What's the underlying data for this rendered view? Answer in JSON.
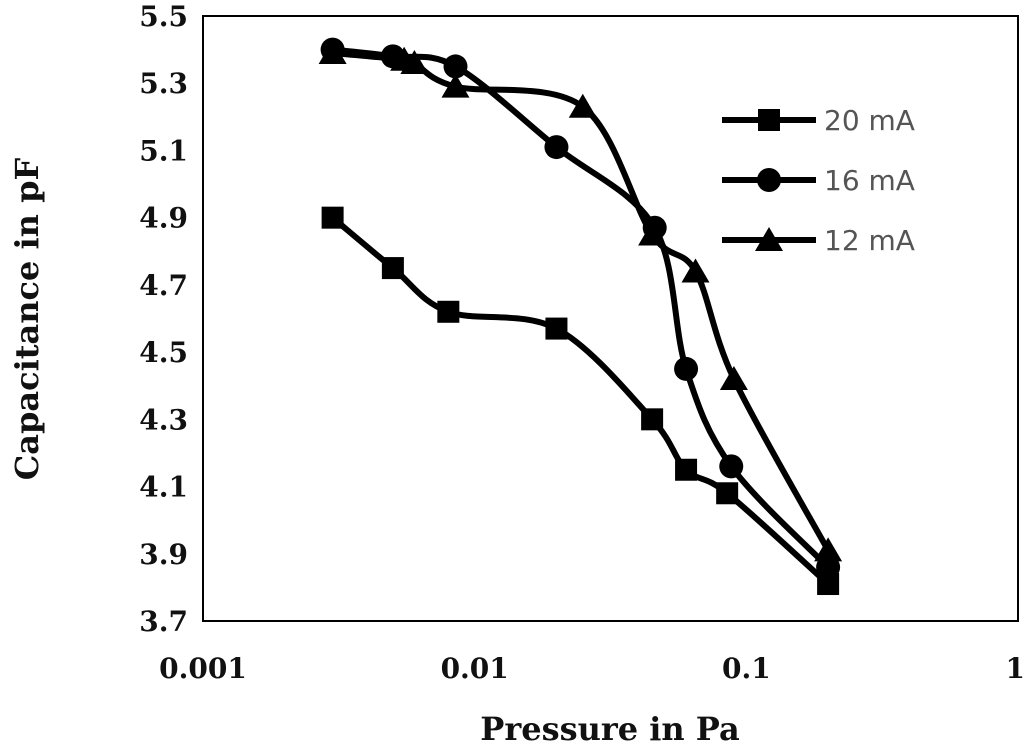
{
  "chart_data": {
    "type": "line",
    "xscale": "log",
    "xlabel": "Pressure in Pa",
    "ylabel": "Capacitance in pF",
    "xlim": [
      0.001,
      1
    ],
    "ylim": [
      3.7,
      5.5
    ],
    "x_ticks": [
      "0.001",
      "0.01",
      "0.1",
      "1"
    ],
    "y_ticks": [
      "3.7",
      "3.9",
      "4.1",
      "4.3",
      "4.5",
      "4.7",
      "4.9",
      "5.1",
      "5.3",
      "5.5"
    ],
    "grid": false,
    "legend_position": "right",
    "series": [
      {
        "name": "20 mA",
        "marker": "square",
        "color": "#000000",
        "x": [
          0.003,
          0.005,
          0.008,
          0.02,
          0.045,
          0.06,
          0.085,
          0.2
        ],
        "y": [
          4.9,
          4.75,
          4.62,
          4.57,
          4.3,
          4.15,
          4.08,
          3.81
        ]
      },
      {
        "name": "16 mA",
        "marker": "circle",
        "color": "#000000",
        "x": [
          0.003,
          0.005,
          0.0085,
          0.02,
          0.046,
          0.06,
          0.088,
          0.2
        ],
        "y": [
          5.4,
          5.38,
          5.35,
          5.11,
          4.87,
          4.45,
          4.16,
          3.86
        ]
      },
      {
        "name": "12 mA",
        "marker": "triangle",
        "color": "#000000",
        "x": [
          0.003,
          0.0055,
          0.006,
          0.0085,
          0.025,
          0.045,
          0.065,
          0.09,
          0.2
        ],
        "y": [
          5.39,
          5.37,
          5.36,
          5.29,
          5.23,
          4.85,
          4.74,
          4.42,
          3.91
        ]
      }
    ]
  }
}
